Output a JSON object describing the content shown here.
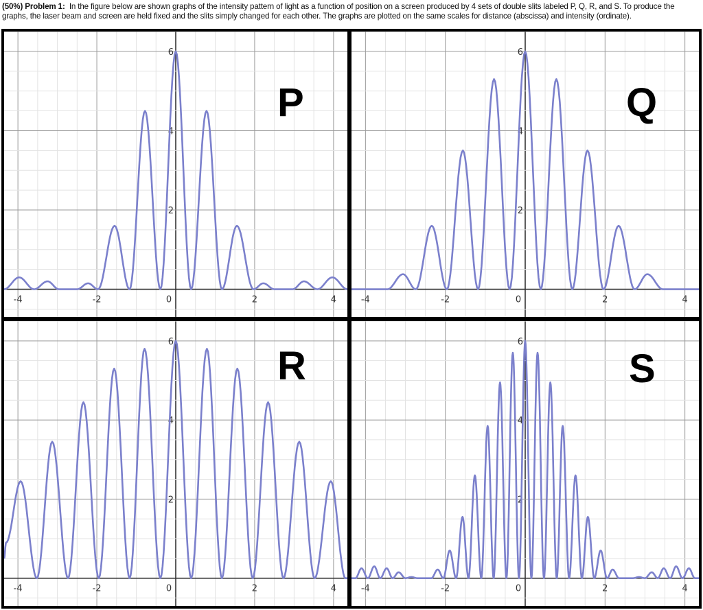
{
  "header": {
    "label": "(50%) Problem 1:",
    "text": "In the figure below are shown graphs of the intensity pattern of light as a function of position on a screen produced by 4 sets of double slits labeled P, Q, R, and S. To produce the graphs, the laser beam and screen are held fixed and the slits simply changed for each other. The graphs are plotted on the same scales for distance (abscissa) and intensity (ordinate)."
  },
  "colors": {
    "curve": "#7b80cc",
    "grid_minor": "#e3e3e3",
    "grid_major": "#9a9a9a",
    "axis": "#333333"
  },
  "chart_data": [
    {
      "type": "line",
      "label": "P",
      "xlim": [
        -4.35,
        4.35
      ],
      "ylim": [
        -0.7,
        6.5
      ],
      "grid": true,
      "grid_step": 0.5,
      "xticks": [
        "-4",
        "-2",
        "0",
        "2",
        "4"
      ],
      "yticks": [
        "2",
        "4",
        "6"
      ],
      "points": [
        [
          -4.35,
          0
        ],
        [
          -3.97,
          0.3
        ],
        [
          -3.59,
          0
        ],
        [
          -3.25,
          0.2
        ],
        [
          -2.96,
          0
        ],
        [
          -2.5,
          0
        ],
        [
          -2.22,
          0.15
        ],
        [
          -1.97,
          0
        ],
        [
          -1.55,
          1.6
        ],
        [
          -1.17,
          0
        ],
        [
          -0.78,
          4.5
        ],
        [
          -0.39,
          0
        ],
        [
          0,
          6
        ],
        [
          0.39,
          0
        ],
        [
          0.78,
          4.5
        ],
        [
          1.17,
          0
        ],
        [
          1.55,
          1.6
        ],
        [
          1.97,
          0
        ],
        [
          2.22,
          0.15
        ],
        [
          2.5,
          0
        ],
        [
          2.96,
          0
        ],
        [
          3.25,
          0.2
        ],
        [
          3.59,
          0
        ],
        [
          3.97,
          0.3
        ],
        [
          4.35,
          0
        ]
      ]
    },
    {
      "type": "line",
      "label": "Q",
      "xlim": [
        -4.35,
        4.35
      ],
      "ylim": [
        -0.7,
        6.5
      ],
      "grid": true,
      "grid_step": 0.5,
      "xticks": [
        "-4",
        "-2",
        "0",
        "2",
        "4"
      ],
      "yticks": [
        "2",
        "4",
        "6"
      ],
      "points": [
        [
          -4.35,
          0
        ],
        [
          -3.45,
          0
        ],
        [
          -3.06,
          0.38
        ],
        [
          -2.74,
          0
        ],
        [
          -2.34,
          1.6
        ],
        [
          -1.96,
          0
        ],
        [
          -1.56,
          3.5
        ],
        [
          -1.18,
          0
        ],
        [
          -0.78,
          5.3
        ],
        [
          -0.39,
          0
        ],
        [
          0,
          6
        ],
        [
          0.39,
          0
        ],
        [
          0.78,
          5.3
        ],
        [
          1.18,
          0
        ],
        [
          1.56,
          3.5
        ],
        [
          1.96,
          0
        ],
        [
          2.34,
          1.6
        ],
        [
          2.74,
          0
        ],
        [
          3.06,
          0.38
        ],
        [
          3.45,
          0
        ],
        [
          4.35,
          0
        ]
      ]
    },
    {
      "type": "line",
      "label": "R",
      "xlim": [
        -4.35,
        4.35
      ],
      "ylim": [
        -0.7,
        6.5
      ],
      "grid": true,
      "grid_step": 0.5,
      "xticks": [
        "-4",
        "-2",
        "0",
        "2",
        "4"
      ],
      "yticks": [
        "2",
        "4",
        "6"
      ],
      "points": [
        [
          -4.35,
          0.5
        ],
        [
          -4.3,
          0.9
        ],
        [
          -3.93,
          2.45
        ],
        [
          -3.52,
          0
        ],
        [
          -3.13,
          3.45
        ],
        [
          -2.73,
          0
        ],
        [
          -2.34,
          4.45
        ],
        [
          -1.95,
          0
        ],
        [
          -1.56,
          5.3
        ],
        [
          -1.17,
          0
        ],
        [
          -0.79,
          5.8
        ],
        [
          -0.39,
          0
        ],
        [
          0,
          6
        ],
        [
          0.39,
          0
        ],
        [
          0.79,
          5.8
        ],
        [
          1.17,
          0
        ],
        [
          1.56,
          5.3
        ],
        [
          1.95,
          0
        ],
        [
          2.34,
          4.45
        ],
        [
          2.73,
          0
        ],
        [
          3.13,
          3.45
        ],
        [
          3.52,
          0
        ],
        [
          3.93,
          2.45
        ],
        [
          4.3,
          0
        ],
        [
          4.35,
          0
        ]
      ]
    },
    {
      "type": "line",
      "label": "S",
      "xlim": [
        -4.35,
        4.35
      ],
      "ylim": [
        -0.7,
        6.5
      ],
      "grid": true,
      "grid_step": 0.5,
      "xticks": [
        "-4",
        "-2",
        "0",
        "2",
        "4"
      ],
      "yticks": [
        "2",
        "4",
        "6"
      ],
      "points": [
        [
          -4.35,
          0
        ],
        [
          -4.25,
          0
        ],
        [
          -4.1,
          0.25
        ],
        [
          -3.94,
          0
        ],
        [
          -3.78,
          0.3
        ],
        [
          -3.63,
          0
        ],
        [
          -3.47,
          0.25
        ],
        [
          -3.32,
          0
        ],
        [
          -3.17,
          0.15
        ],
        [
          -3.0,
          0
        ],
        [
          -2.85,
          0.03
        ],
        [
          -2.7,
          0
        ],
        [
          -2.35,
          0
        ],
        [
          -2.19,
          0.22
        ],
        [
          -2.05,
          0
        ],
        [
          -1.89,
          0.7
        ],
        [
          -1.73,
          0
        ],
        [
          -1.57,
          1.55
        ],
        [
          -1.42,
          0
        ],
        [
          -1.26,
          2.6
        ],
        [
          -1.1,
          0
        ],
        [
          -0.94,
          3.85
        ],
        [
          -0.79,
          0
        ],
        [
          -0.63,
          4.95
        ],
        [
          -0.47,
          0
        ],
        [
          -0.31,
          5.7
        ],
        [
          -0.155,
          0
        ],
        [
          0,
          6
        ],
        [
          0.155,
          0
        ],
        [
          0.31,
          5.7
        ],
        [
          0.47,
          0
        ],
        [
          0.63,
          4.95
        ],
        [
          0.79,
          0
        ],
        [
          0.94,
          3.85
        ],
        [
          1.1,
          0
        ],
        [
          1.26,
          2.6
        ],
        [
          1.42,
          0
        ],
        [
          1.57,
          1.55
        ],
        [
          1.73,
          0
        ],
        [
          1.89,
          0.7
        ],
        [
          2.05,
          0
        ],
        [
          2.19,
          0.22
        ],
        [
          2.35,
          0
        ],
        [
          2.7,
          0
        ],
        [
          2.85,
          0.03
        ],
        [
          3.0,
          0
        ],
        [
          3.17,
          0.15
        ],
        [
          3.32,
          0
        ],
        [
          3.47,
          0.25
        ],
        [
          3.63,
          0
        ],
        [
          3.78,
          0.3
        ],
        [
          3.94,
          0
        ],
        [
          4.1,
          0.25
        ],
        [
          4.25,
          0
        ],
        [
          4.35,
          0
        ]
      ]
    }
  ]
}
